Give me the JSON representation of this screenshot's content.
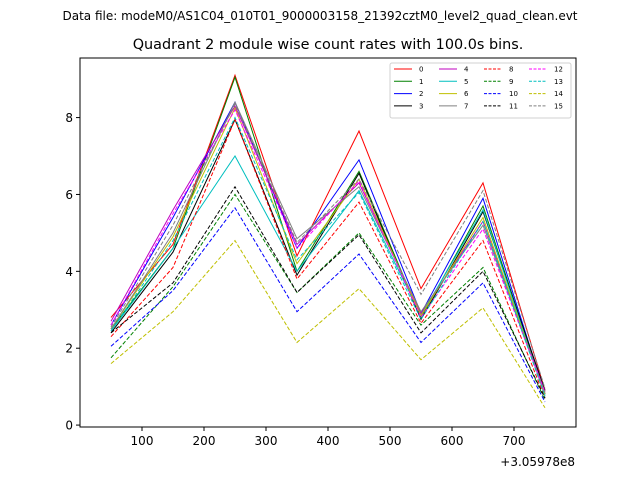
{
  "suptitle": "Data file: modeM0/AS1C04_010T01_9000003158_21392cztM0_level2_quad_clean.evt",
  "chart_data": {
    "type": "line",
    "title": "Quadrant 2 module wise count rates with 100.0s bins.",
    "xlabel": "",
    "ylabel": "",
    "x_offset_label": "+3.05978e8",
    "xlim": [
      0,
      800
    ],
    "ylim": [
      -0.05,
      9.55
    ],
    "xticks": [
      100,
      200,
      300,
      400,
      500,
      600,
      700
    ],
    "yticks": [
      0,
      2,
      4,
      6,
      8
    ],
    "x": [
      50,
      150,
      250,
      350,
      450,
      550,
      650,
      750
    ],
    "legend_position": "top-right",
    "series": [
      {
        "name": "0",
        "color": "#ff0000",
        "dashed": false,
        "values": [
          2.8,
          4.7,
          9.1,
          4.4,
          7.65,
          3.55,
          6.3,
          0.9
        ]
      },
      {
        "name": "1",
        "color": "#008000",
        "dashed": false,
        "values": [
          2.5,
          4.6,
          9.05,
          4.0,
          6.6,
          2.8,
          5.7,
          0.8
        ]
      },
      {
        "name": "2",
        "color": "#0000ff",
        "dashed": false,
        "values": [
          2.6,
          5.4,
          8.4,
          4.6,
          6.9,
          2.9,
          5.9,
          0.8
        ]
      },
      {
        "name": "3",
        "color": "#000000",
        "dashed": false,
        "values": [
          2.4,
          4.5,
          7.95,
          3.9,
          6.55,
          2.75,
          5.55,
          0.9
        ]
      },
      {
        "name": "4",
        "color": "#bf00bf",
        "dashed": false,
        "values": [
          2.7,
          5.6,
          8.3,
          4.7,
          6.3,
          2.9,
          5.3,
          0.85
        ]
      },
      {
        "name": "5",
        "color": "#00bfbf",
        "dashed": false,
        "values": [
          2.45,
          4.6,
          7.0,
          4.0,
          6.1,
          2.85,
          5.6,
          0.75
        ]
      },
      {
        "name": "6",
        "color": "#bfbf00",
        "dashed": false,
        "values": [
          2.5,
          4.9,
          8.25,
          4.2,
          6.4,
          2.85,
          5.4,
          0.8
        ]
      },
      {
        "name": "7",
        "color": "#808080",
        "dashed": false,
        "values": [
          2.5,
          5.0,
          8.4,
          4.85,
          6.2,
          2.95,
          5.2,
          0.85
        ]
      },
      {
        "name": "8",
        "color": "#ff0000",
        "dashed": true,
        "values": [
          2.3,
          4.1,
          7.95,
          3.8,
          5.8,
          2.65,
          4.8,
          0.7
        ]
      },
      {
        "name": "9",
        "color": "#008000",
        "dashed": true,
        "values": [
          1.75,
          3.6,
          6.0,
          3.45,
          5.0,
          2.6,
          4.1,
          0.65
        ]
      },
      {
        "name": "10",
        "color": "#0000ff",
        "dashed": true,
        "values": [
          2.05,
          3.5,
          5.65,
          2.95,
          4.45,
          2.15,
          3.7,
          0.6
        ]
      },
      {
        "name": "11",
        "color": "#000000",
        "dashed": true,
        "values": [
          2.4,
          3.7,
          6.2,
          3.45,
          4.95,
          2.4,
          4.0,
          0.7
        ]
      },
      {
        "name": "12",
        "color": "#ff00ff",
        "dashed": true,
        "values": [
          2.6,
          5.5,
          8.2,
          4.6,
          6.35,
          2.8,
          5.1,
          0.85
        ]
      },
      {
        "name": "13",
        "color": "#00bfbf",
        "dashed": true,
        "values": [
          2.45,
          4.8,
          8.0,
          4.3,
          6.05,
          2.75,
          5.3,
          0.75
        ]
      },
      {
        "name": "14",
        "color": "#bfbf00",
        "dashed": true,
        "values": [
          1.6,
          2.95,
          4.8,
          2.15,
          3.55,
          1.7,
          3.05,
          0.45
        ]
      },
      {
        "name": "15",
        "color": "#808080",
        "dashed": true,
        "values": [
          2.55,
          5.2,
          8.35,
          4.75,
          6.4,
          3.4,
          6.1,
          0.95
        ]
      }
    ]
  }
}
